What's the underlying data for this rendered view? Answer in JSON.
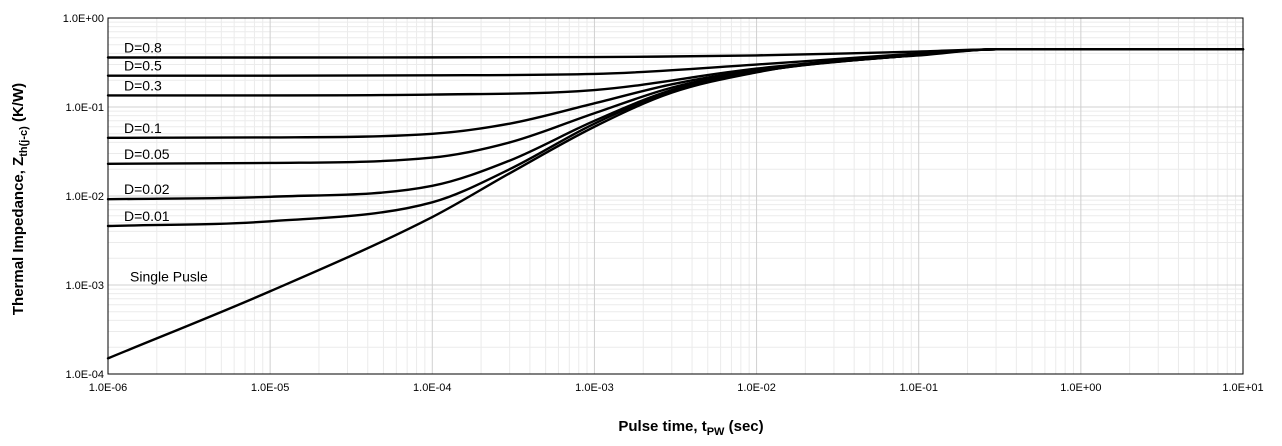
{
  "chart_data": {
    "type": "line",
    "title": "",
    "xlabel": {
      "main": "Pulse time, t",
      "sub": "PW",
      "unit": " (sec)"
    },
    "ylabel": {
      "main": "Thermal Impedance, Z",
      "sub": "th(j-c)",
      "unit": " (K/W)"
    },
    "x_scale": "log",
    "y_scale": "log",
    "xlim": [
      1e-06,
      10
    ],
    "ylim": [
      0.0001,
      1
    ],
    "x_ticks": [
      1e-06,
      1e-05,
      0.0001,
      0.001,
      0.01,
      0.1,
      1,
      10
    ],
    "x_tick_labels": [
      "1.0E-06",
      "1.0E-05",
      "1.0E-04",
      "1.0E-03",
      "1.0E-02",
      "1.0E-01",
      "1.0E+00",
      "1.0E+01"
    ],
    "y_ticks": [
      0.0001,
      0.001,
      0.01,
      0.1,
      1
    ],
    "y_tick_labels": [
      "1.0E-04",
      "1.0E-03",
      "1.0E-02",
      "1.0E-01",
      "1.0E+00"
    ],
    "grid": true,
    "legend": "none",
    "series_color": "#000000",
    "series": [
      {
        "name": "D=0.8",
        "x": [
          1e-06,
          1e-05,
          0.0001,
          0.001,
          0.01,
          0.1,
          0.3,
          1,
          10
        ],
        "y": [
          0.36,
          0.36,
          0.361,
          0.364,
          0.38,
          0.42,
          0.445,
          0.445,
          0.445
        ]
      },
      {
        "name": "D=0.5",
        "x": [
          1e-06,
          1e-05,
          0.0001,
          0.001,
          0.01,
          0.1,
          0.3,
          1,
          10
        ],
        "y": [
          0.225,
          0.225,
          0.227,
          0.235,
          0.3,
          0.4,
          0.445,
          0.445,
          0.445
        ]
      },
      {
        "name": "D=0.3",
        "x": [
          1e-06,
          1e-05,
          0.0001,
          0.001,
          0.01,
          0.1,
          0.3,
          1,
          10
        ],
        "y": [
          0.135,
          0.135,
          0.138,
          0.155,
          0.27,
          0.39,
          0.445,
          0.445,
          0.445
        ]
      },
      {
        "name": "D=0.1",
        "x": [
          1e-06,
          1e-05,
          0.0001,
          0.0003,
          0.001,
          0.003,
          0.01,
          0.1,
          0.3,
          1,
          10
        ],
        "y": [
          0.045,
          0.0455,
          0.05,
          0.065,
          0.11,
          0.18,
          0.26,
          0.39,
          0.445,
          0.445,
          0.445
        ]
      },
      {
        "name": "D=0.05",
        "x": [
          1e-06,
          1e-05,
          0.0001,
          0.0003,
          0.001,
          0.003,
          0.01,
          0.1,
          0.3,
          1,
          10
        ],
        "y": [
          0.023,
          0.0235,
          0.027,
          0.04,
          0.085,
          0.165,
          0.255,
          0.385,
          0.445,
          0.445,
          0.445
        ]
      },
      {
        "name": "D=0.02",
        "x": [
          1e-06,
          1e-05,
          0.0001,
          0.0003,
          0.001,
          0.003,
          0.01,
          0.1,
          0.3,
          1,
          10
        ],
        "y": [
          0.0092,
          0.0098,
          0.013,
          0.025,
          0.07,
          0.155,
          0.25,
          0.385,
          0.445,
          0.445,
          0.445
        ]
      },
      {
        "name": "D=0.01",
        "x": [
          1e-06,
          1e-05,
          0.0001,
          0.0003,
          0.001,
          0.003,
          0.01,
          0.1,
          0.3,
          1,
          10
        ],
        "y": [
          0.0046,
          0.0052,
          0.0085,
          0.02,
          0.065,
          0.15,
          0.25,
          0.385,
          0.445,
          0.445,
          0.445
        ]
      },
      {
        "name": "Single Pusle",
        "x": [
          1e-06,
          1e-05,
          0.0001,
          0.0003,
          0.001,
          0.003,
          0.01,
          0.03,
          0.1,
          0.3,
          1,
          10
        ],
        "y": [
          0.00015,
          0.00085,
          0.0058,
          0.018,
          0.06,
          0.145,
          0.245,
          0.33,
          0.38,
          0.445,
          0.445,
          0.445
        ]
      }
    ]
  }
}
